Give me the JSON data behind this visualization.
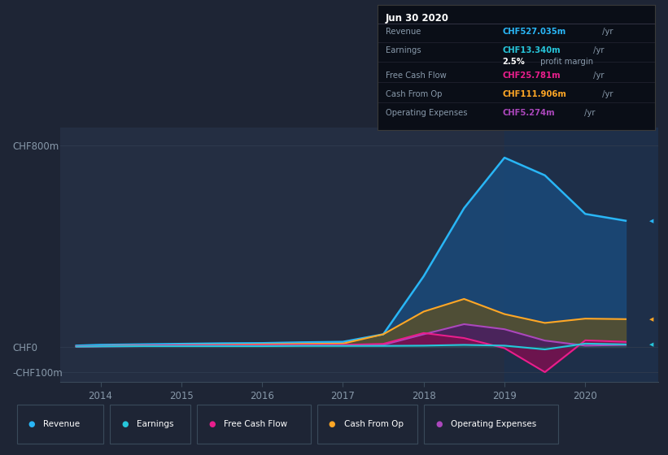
{
  "background_color": "#1e2535",
  "plot_bg_color": "#242e42",
  "grid_color": "#2e3a4e",
  "title_box": {
    "date": "Jun 30 2020",
    "rows": [
      {
        "label": "Revenue",
        "value": "CHF527.035m",
        "value_color": "#29b6f6",
        "suffix": " /yr"
      },
      {
        "label": "Earnings",
        "value": "CHF13.340m",
        "value_color": "#26c6da",
        "suffix": " /yr"
      },
      {
        "label": "",
        "value": "2.5%",
        "value_color": "#ffffff",
        "suffix": " profit margin"
      },
      {
        "label": "Free Cash Flow",
        "value": "CHF25.781m",
        "value_color": "#e91e8c",
        "suffix": " /yr"
      },
      {
        "label": "Cash From Op",
        "value": "CHF111.906m",
        "value_color": "#ffa726",
        "suffix": " /yr"
      },
      {
        "label": "Operating Expenses",
        "value": "CHF5.274m",
        "value_color": "#ab47bc",
        "suffix": " /yr"
      }
    ],
    "box_bg": "#0a0e17",
    "box_border": "#3a3a3a"
  },
  "years": [
    2013.7,
    2014.0,
    2014.5,
    2015.0,
    2015.5,
    2016.0,
    2016.5,
    2017.0,
    2017.5,
    2018.0,
    2018.5,
    2019.0,
    2019.5,
    2020.0,
    2020.5
  ],
  "revenue": [
    5,
    8,
    10,
    12,
    14,
    15,
    18,
    20,
    50,
    280,
    550,
    750,
    680,
    527,
    500
  ],
  "earnings": [
    1,
    2,
    3,
    3,
    3,
    3,
    4,
    4,
    4,
    5,
    8,
    5,
    -10,
    13,
    10
  ],
  "free_cash_flow": [
    2,
    3,
    5,
    6,
    6,
    7,
    8,
    8,
    12,
    55,
    35,
    -5,
    -100,
    26,
    20
  ],
  "cash_from_op": [
    2,
    3,
    5,
    7,
    8,
    10,
    12,
    13,
    50,
    140,
    190,
    130,
    95,
    112,
    110
  ],
  "operating_exp": [
    1,
    2,
    3,
    4,
    4,
    5,
    6,
    7,
    8,
    50,
    90,
    70,
    25,
    5,
    8
  ],
  "ylim": [
    -140,
    870
  ],
  "yticks_pos": [
    -100,
    0,
    800
  ],
  "ytick_labels": [
    "-CHF100m",
    "CHF0",
    "CHF800m"
  ],
  "xlim": [
    2013.5,
    2020.9
  ],
  "xticks": [
    2014,
    2015,
    2016,
    2017,
    2018,
    2019,
    2020
  ],
  "revenue_color": "#29b6f6",
  "revenue_fill": "#1a4a7a",
  "earnings_color": "#26c6da",
  "earnings_fill": "#1a5a5a",
  "free_cash_flow_color": "#e91e8c",
  "free_cash_flow_fill": "#7a1050",
  "cash_from_op_color": "#ffa726",
  "cash_from_op_fill": "#555030",
  "operating_exp_color": "#ab47bc",
  "operating_exp_fill": "#4a2060",
  "highlight_start": 2019.0,
  "highlight_end": 2020.9,
  "highlight_color": "#1a3050",
  "legend_items": [
    {
      "label": "Revenue",
      "color": "#29b6f6"
    },
    {
      "label": "Earnings",
      "color": "#26c6da"
    },
    {
      "label": "Free Cash Flow",
      "color": "#e91e8c"
    },
    {
      "label": "Cash From Op",
      "color": "#ffa726"
    },
    {
      "label": "Operating Expenses",
      "color": "#ab47bc"
    }
  ]
}
